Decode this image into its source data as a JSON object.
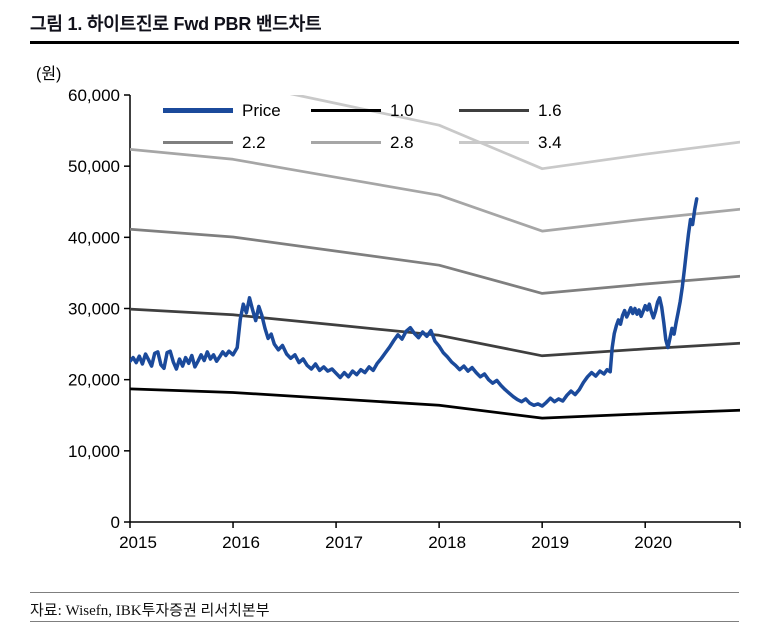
{
  "page": {
    "title": "그림 1. 하이트진로 Fwd PBR 밴드차트",
    "unit_label": "(원)",
    "source": "자료: Wisefn, IBK투자증권 리서치본부"
  },
  "chart_data": {
    "type": "line",
    "title": "하이트진로 Fwd PBR 밴드차트",
    "xlabel": "",
    "ylabel": "(원)",
    "xlim": [
      2015,
      2020.92
    ],
    "ylim": [
      0,
      60000
    ],
    "y_ticks": [
      0,
      10000,
      20000,
      30000,
      40000,
      50000,
      60000
    ],
    "x_ticks": [
      2015,
      2016,
      2017,
      2018,
      2019,
      2020
    ],
    "grid": false,
    "legend_position": "top-inside",
    "axis_color": "#000000",
    "series": [
      {
        "name": "Price",
        "color": "#1b4a9b",
        "width": 3.5,
        "x": [
          2015.0,
          2015.03,
          2015.06,
          2015.09,
          2015.12,
          2015.15,
          2015.18,
          2015.21,
          2015.24,
          2015.27,
          2015.3,
          2015.33,
          2015.36,
          2015.39,
          2015.42,
          2015.45,
          2015.48,
          2015.51,
          2015.54,
          2015.57,
          2015.6,
          2015.63,
          2015.66,
          2015.69,
          2015.72,
          2015.75,
          2015.78,
          2015.81,
          2015.84,
          2015.87,
          2015.9,
          2015.93,
          2015.96,
          2016.0,
          2016.04,
          2016.07,
          2016.1,
          2016.13,
          2016.16,
          2016.19,
          2016.22,
          2016.25,
          2016.28,
          2016.31,
          2016.34,
          2016.37,
          2016.4,
          2016.44,
          2016.48,
          2016.52,
          2016.56,
          2016.6,
          2016.64,
          2016.68,
          2016.72,
          2016.76,
          2016.8,
          2016.84,
          2016.88,
          2016.92,
          2016.96,
          2017.0,
          2017.04,
          2017.08,
          2017.12,
          2017.16,
          2017.2,
          2017.24,
          2017.28,
          2017.32,
          2017.36,
          2017.4,
          2017.44,
          2017.48,
          2017.52,
          2017.56,
          2017.6,
          2017.64,
          2017.68,
          2017.72,
          2017.76,
          2017.8,
          2017.84,
          2017.88,
          2017.92,
          2017.96,
          2018.0,
          2018.04,
          2018.08,
          2018.12,
          2018.16,
          2018.2,
          2018.24,
          2018.28,
          2018.32,
          2018.36,
          2018.4,
          2018.44,
          2018.48,
          2018.52,
          2018.56,
          2018.6,
          2018.64,
          2018.68,
          2018.72,
          2018.76,
          2018.8,
          2018.84,
          2018.88,
          2018.92,
          2018.96,
          2019.0,
          2019.04,
          2019.08,
          2019.12,
          2019.16,
          2019.2,
          2019.24,
          2019.28,
          2019.32,
          2019.36,
          2019.4,
          2019.44,
          2019.48,
          2019.52,
          2019.56,
          2019.6,
          2019.63,
          2019.66,
          2019.68,
          2019.7,
          2019.72,
          2019.74,
          2019.76,
          2019.78,
          2019.8,
          2019.82,
          2019.84,
          2019.86,
          2019.88,
          2019.9,
          2019.92,
          2019.94,
          2019.96,
          2019.98,
          2020.0,
          2020.02,
          2020.04,
          2020.06,
          2020.08,
          2020.1,
          2020.12,
          2020.14,
          2020.16,
          2020.18,
          2020.2,
          2020.22,
          2020.24,
          2020.26,
          2020.28,
          2020.3,
          2020.32,
          2020.34,
          2020.36,
          2020.38,
          2020.4,
          2020.42,
          2020.44,
          2020.46,
          2020.48,
          2020.5
        ],
        "values": [
          22600,
          23100,
          22400,
          23300,
          22200,
          23600,
          22800,
          21900,
          23700,
          23900,
          22100,
          21600,
          23800,
          24000,
          22500,
          21500,
          22900,
          21900,
          23100,
          22300,
          23400,
          21800,
          22600,
          23500,
          22700,
          23900,
          22900,
          23500,
          22600,
          23200,
          23900,
          23400,
          24000,
          23500,
          24500,
          28500,
          30600,
          29400,
          31500,
          29800,
          28300,
          30300,
          29000,
          27200,
          25800,
          26400,
          25000,
          24200,
          24800,
          23600,
          23000,
          23500,
          22400,
          22900,
          22000,
          21500,
          22200,
          21300,
          21800,
          21200,
          21500,
          20900,
          20300,
          21000,
          20400,
          21200,
          20700,
          21400,
          21000,
          21800,
          21300,
          22300,
          23000,
          23800,
          24600,
          25500,
          26300,
          25700,
          26800,
          27300,
          26500,
          25900,
          26700,
          26100,
          26900,
          25400,
          24700,
          23800,
          23200,
          22500,
          22000,
          21400,
          21900,
          21200,
          21700,
          21000,
          20400,
          20800,
          20000,
          19500,
          19900,
          19200,
          18600,
          18100,
          17600,
          17200,
          16900,
          17300,
          16700,
          16400,
          16600,
          16300,
          16800,
          17400,
          16900,
          17300,
          17000,
          17800,
          18400,
          17900,
          18600,
          19600,
          20400,
          21000,
          20500,
          21200,
          20800,
          21400,
          21100,
          24500,
          26500,
          27600,
          28400,
          27800,
          29000,
          29700,
          28800,
          29400,
          30100,
          29300,
          30000,
          29200,
          29800,
          28900,
          29600,
          30400,
          29800,
          30600,
          29500,
          28700,
          29600,
          30900,
          31500,
          30200,
          28000,
          25600,
          24500,
          25800,
          27200,
          26400,
          28000,
          29500,
          31000,
          33000,
          35500,
          38000,
          40500,
          42500,
          41800,
          43900,
          45400
        ]
      },
      {
        "name": "1.0",
        "color": "#000000",
        "width": 2.75,
        "x": [
          2015,
          2016,
          2017,
          2018,
          2019,
          2020,
          2020.92
        ],
        "values": [
          18700,
          18200,
          17300,
          16400,
          14600,
          15200,
          15700
        ]
      },
      {
        "name": "1.6",
        "color": "#3f3f3f",
        "width": 2.75,
        "x": [
          2015,
          2016,
          2017,
          2018,
          2019,
          2020,
          2020.92
        ],
        "values": [
          29920,
          29120,
          27680,
          26240,
          23360,
          24320,
          25120
        ]
      },
      {
        "name": "2.2",
        "color": "#7f7f7f",
        "width": 2.75,
        "x": [
          2015,
          2016,
          2017,
          2018,
          2019,
          2020,
          2020.92
        ],
        "values": [
          41140,
          40040,
          38060,
          36080,
          32120,
          33440,
          34540
        ]
      },
      {
        "name": "2.8",
        "color": "#a6a6a6",
        "width": 2.75,
        "x": [
          2015,
          2016,
          2017,
          2018,
          2019,
          2020,
          2020.92
        ],
        "values": [
          52360,
          50960,
          48440,
          45920,
          40880,
          42560,
          43960
        ]
      },
      {
        "name": "3.4",
        "color": "#c9c9c9",
        "width": 2.75,
        "x": [
          2015,
          2016,
          2017,
          2018,
          2019,
          2020,
          2020.92
        ],
        "values": [
          63580,
          61880,
          58820,
          55760,
          49640,
          51680,
          53380
        ]
      }
    ]
  }
}
